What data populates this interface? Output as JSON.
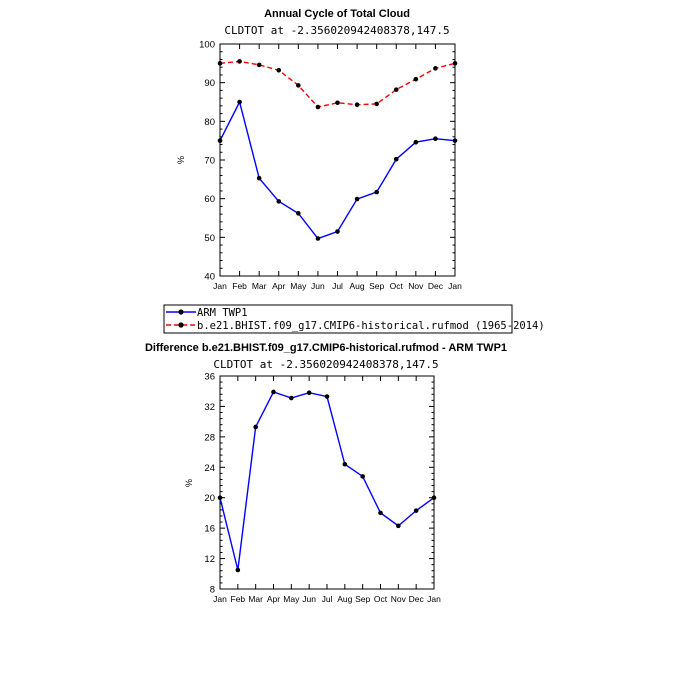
{
  "chart_data": [
    {
      "type": "line",
      "title": "Annual Cycle of Total Cloud",
      "subtitle": "CLDTOT at -2.356020942408378,147.5",
      "ylabel": "%",
      "ylim": [
        40,
        100
      ],
      "yticks": [
        "40",
        "50",
        "60",
        "70",
        "80",
        "90",
        "100"
      ],
      "categories": [
        "Jan",
        "Feb",
        "Mar",
        "Apr",
        "May",
        "Jun",
        "Jul",
        "Aug",
        "Sep",
        "Oct",
        "Nov",
        "Dec",
        "Jan"
      ],
      "series": [
        {
          "name": "ARM TWP1",
          "color": "#0000ff",
          "dash": "solid",
          "values": [
            75.0,
            85.0,
            65.3,
            59.3,
            56.2,
            49.7,
            51.5,
            59.9,
            61.7,
            70.2,
            74.6,
            75.5,
            75.0
          ]
        },
        {
          "name": "b.e21.BHIST.f09_g17.CMIP6-historical.rufmod (1965-2014)",
          "color": "#ff0000",
          "dash": "dashed",
          "values": [
            95.0,
            95.5,
            94.6,
            93.2,
            89.3,
            83.7,
            84.8,
            84.3,
            84.5,
            88.2,
            90.9,
            93.7,
            95.0
          ]
        }
      ],
      "grid": false,
      "legend": "below"
    },
    {
      "type": "line",
      "title": "Difference b.e21.BHIST.f09_g17.CMIP6-historical.rufmod - ARM TWP1",
      "subtitle": "CLDTOT at -2.356020942408378,147.5",
      "ylabel": "%",
      "ylim": [
        8,
        36
      ],
      "yticks": [
        "8",
        "12",
        "16",
        "20",
        "24",
        "28",
        "32",
        "36"
      ],
      "categories": [
        "Jan",
        "Feb",
        "Mar",
        "Apr",
        "May",
        "Jun",
        "Jul",
        "Aug",
        "Sep",
        "Oct",
        "Nov",
        "Dec",
        "Jan"
      ],
      "series": [
        {
          "color": "#0000ff",
          "dash": "solid",
          "values": [
            20.0,
            10.5,
            29.3,
            33.9,
            33.1,
            33.8,
            33.3,
            24.4,
            22.8,
            18.0,
            16.3,
            18.3,
            20.0
          ]
        }
      ],
      "grid": false
    }
  ]
}
